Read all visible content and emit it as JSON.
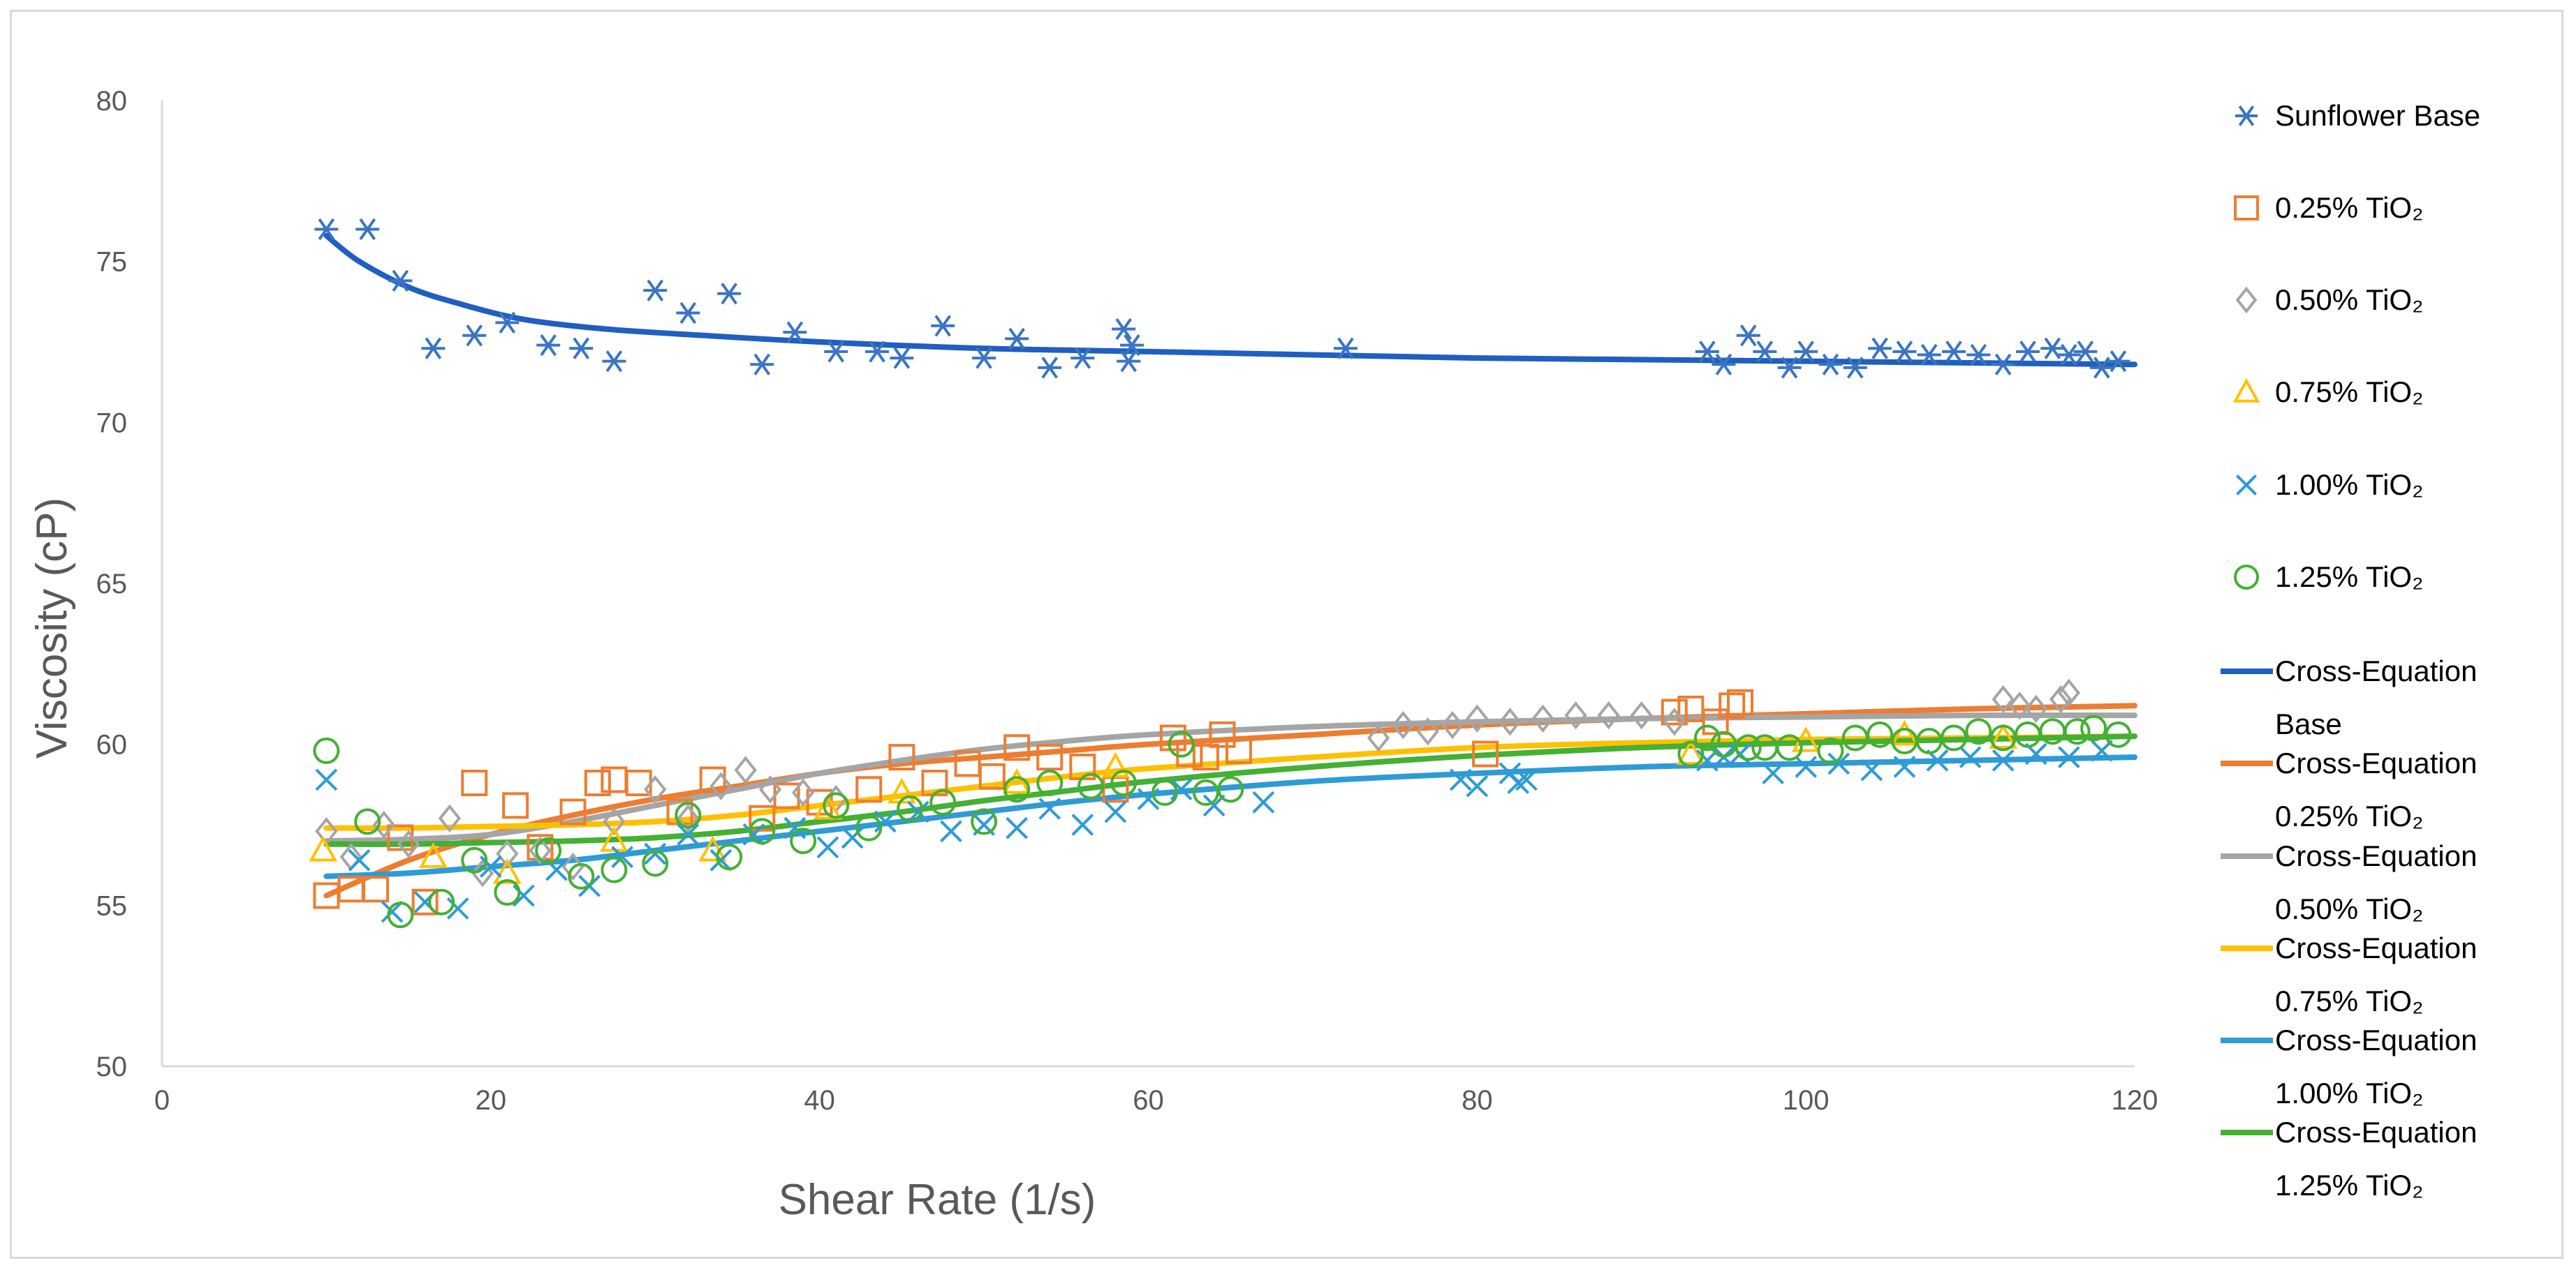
{
  "chart_data": {
    "type": "scatter",
    "title": "",
    "xlabel": "Shear Rate (1/s)",
    "ylabel": "Viscosity (cP)",
    "xlim": [
      0,
      120
    ],
    "ylim": [
      50,
      80
    ],
    "xticks": [
      "0",
      "20",
      "40",
      "60",
      "80",
      "100",
      "120"
    ],
    "yticks": [
      "50",
      "55",
      "60",
      "65",
      "70",
      "75",
      "80"
    ],
    "grid": false,
    "legend_position": "right",
    "series": [
      {
        "name": "Sunflower Base",
        "marker": "asterisk",
        "color": "#3a75c4",
        "x": [
          10,
          12.5,
          14.5,
          16.5,
          19,
          21,
          23.5,
          25.5,
          27.5,
          30,
          32,
          34.5,
          36.5,
          38.5,
          41,
          43.5,
          45,
          47.5,
          50,
          52,
          54,
          56,
          58.5,
          58.8,
          59,
          72,
          94,
          95,
          96.5,
          97.5,
          99,
          100,
          101.5,
          103,
          104.5,
          106,
          107.5,
          109,
          110.5,
          112,
          113.5,
          115,
          116,
          117,
          118,
          119
        ],
        "y": [
          76.0,
          76.0,
          74.4,
          72.3,
          72.7,
          73.1,
          72.4,
          72.3,
          71.9,
          74.1,
          73.4,
          74.0,
          71.8,
          72.8,
          72.2,
          72.2,
          72.0,
          73.0,
          72.0,
          72.6,
          71.7,
          72.0,
          72.9,
          71.9,
          72.4,
          72.3,
          72.2,
          71.8,
          72.7,
          72.2,
          71.7,
          72.2,
          71.8,
          71.7,
          72.3,
          72.2,
          72.1,
          72.2,
          72.1,
          71.8,
          72.2,
          72.3,
          72.1,
          72.2,
          71.7,
          71.9
        ]
      },
      {
        "name": "0.25% TiO₂",
        "marker": "square",
        "color": "#ed7d31",
        "x": [
          10,
          11.5,
          13,
          14.5,
          16,
          19,
          21.5,
          23,
          25,
          26.5,
          27.5,
          29,
          31.5,
          33.5,
          36.5,
          38,
          40,
          43,
          45,
          47,
          49,
          50.5,
          52,
          54,
          56,
          58,
          61.5,
          62.5,
          63.5,
          64.5,
          65.5,
          80.5,
          92,
          93,
          94.5,
          95.5,
          96
        ],
        "y": [
          55.3,
          55.5,
          55.5,
          57.1,
          55.1,
          58.8,
          58.1,
          56.8,
          57.9,
          58.8,
          58.9,
          58.8,
          57.9,
          58.9,
          57.7,
          58.4,
          58.2,
          58.6,
          59.6,
          58.8,
          59.4,
          59.0,
          59.9,
          59.6,
          59.3,
          58.6,
          60.2,
          59.7,
          59.6,
          60.3,
          59.8,
          59.7,
          61.0,
          61.1,
          60.7,
          61.2,
          61.3
        ]
      },
      {
        "name": "0.50% TiO₂",
        "marker": "diamond",
        "color": "#a5a5a5",
        "x": [
          10,
          11.5,
          13.5,
          15,
          17.5,
          19.5,
          21,
          23,
          25,
          27.5,
          30,
          32,
          34,
          35.5,
          37,
          39,
          41,
          74,
          75.5,
          77,
          78.5,
          80,
          82,
          84,
          86,
          88,
          90,
          92,
          112,
          113,
          114,
          115.5,
          116
        ],
        "y": [
          57.3,
          56.5,
          57.5,
          56.9,
          57.7,
          56.0,
          56.6,
          56.7,
          56.2,
          57.6,
          58.6,
          57.7,
          58.7,
          59.2,
          58.6,
          58.5,
          58.3,
          60.2,
          60.6,
          60.4,
          60.6,
          60.8,
          60.7,
          60.8,
          60.9,
          60.9,
          60.9,
          60.7,
          61.4,
          61.2,
          61.1,
          61.4,
          61.6
        ]
      },
      {
        "name": "0.75% TiO₂",
        "marker": "triangle",
        "color": "#ffc000",
        "x": [
          9.8,
          16.5,
          21,
          27.5,
          33.5,
          40.5,
          45,
          52,
          58,
          93,
          100,
          106,
          112
        ],
        "y": [
          56.7,
          56.5,
          56.0,
          57.0,
          56.7,
          58.0,
          58.5,
          58.8,
          59.3,
          59.7,
          60.1,
          60.3,
          60.2
        ]
      },
      {
        "name": "1.00% TiO₂",
        "marker": "x",
        "color": "#2e9bd6",
        "x": [
          10,
          12,
          14,
          16,
          18,
          20,
          22,
          24,
          26,
          28,
          30,
          32,
          34,
          36,
          38.5,
          40.5,
          42,
          44,
          46,
          48,
          50,
          52,
          54,
          56,
          58,
          60,
          62,
          64,
          67,
          79,
          80,
          82,
          82.5,
          83,
          94,
          95,
          96,
          98,
          100,
          102,
          104,
          106,
          108,
          110,
          112,
          114,
          116,
          118
        ],
        "y": [
          58.9,
          56.4,
          54.8,
          55.1,
          54.9,
          56.2,
          55.3,
          56.1,
          55.6,
          56.5,
          56.6,
          57.2,
          56.4,
          57.2,
          57.4,
          56.8,
          57.1,
          57.6,
          57.9,
          57.3,
          57.5,
          57.4,
          58.0,
          57.5,
          57.9,
          58.3,
          58.6,
          58.1,
          58.2,
          58.9,
          58.7,
          59.1,
          58.8,
          58.9,
          59.5,
          59.6,
          59.7,
          59.1,
          59.3,
          59.4,
          59.2,
          59.3,
          59.5,
          59.6,
          59.5,
          59.7,
          59.6,
          59.8
        ]
      },
      {
        "name": "1.25% TiO₂",
        "marker": "circle",
        "color": "#44b034",
        "x": [
          10,
          12.5,
          14.5,
          17,
          19,
          21,
          23.5,
          25.5,
          27.5,
          30,
          32,
          34.5,
          36.5,
          39,
          41,
          43,
          45.5,
          47.5,
          50,
          52,
          54,
          56.5,
          58.5,
          61,
          62,
          63.5,
          65,
          93,
          94,
          95,
          96.5,
          97.5,
          99,
          101.5,
          103,
          104.5,
          106,
          107.5,
          109,
          110.5,
          112,
          113.5,
          115,
          116.5,
          117.5,
          119
        ],
        "y": [
          59.8,
          57.6,
          54.7,
          55.1,
          56.4,
          55.4,
          56.7,
          55.9,
          56.1,
          56.3,
          57.8,
          56.5,
          57.3,
          57.0,
          58.1,
          57.4,
          58.0,
          58.2,
          57.6,
          58.6,
          58.8,
          58.7,
          58.8,
          58.5,
          60.0,
          58.5,
          58.6,
          59.7,
          60.2,
          60.0,
          59.9,
          59.9,
          59.9,
          59.8,
          60.2,
          60.3,
          60.1,
          60.1,
          60.2,
          60.4,
          60.2,
          60.3,
          60.4,
          60.4,
          60.5,
          60.3
        ]
      },
      {
        "name": "Cross-Equation Base",
        "type": "line",
        "color": "#1f5fc0",
        "x": [
          10,
          12,
          15,
          18,
          22,
          27,
          33,
          40,
          50,
          60,
          70,
          80,
          90,
          100,
          110,
          120
        ],
        "y": [
          75.8,
          75.0,
          74.2,
          73.7,
          73.2,
          72.9,
          72.7,
          72.5,
          72.3,
          72.2,
          72.1,
          72.0,
          71.95,
          71.9,
          71.85,
          71.8
        ]
      },
      {
        "name": "Cross-Equation 0.25% TiO₂",
        "type": "line",
        "color": "#ed7d31",
        "x": [
          10,
          15,
          20,
          25,
          30,
          35,
          40,
          45,
          50,
          55,
          60,
          70,
          80,
          90,
          100,
          110,
          120
        ],
        "y": [
          55.3,
          56.4,
          57.2,
          57.8,
          58.3,
          58.7,
          59.1,
          59.4,
          59.6,
          59.8,
          60.0,
          60.3,
          60.6,
          60.8,
          60.95,
          61.1,
          61.2
        ]
      },
      {
        "name": "Cross-Equation 0.50% TiO₂",
        "type": "line",
        "color": "#a5a5a5",
        "x": [
          10,
          15,
          20,
          25,
          30,
          35,
          40,
          45,
          50,
          55,
          60,
          70,
          80,
          90,
          100,
          110,
          120
        ],
        "y": [
          57.0,
          57.05,
          57.2,
          57.6,
          58.1,
          58.6,
          59.1,
          59.5,
          59.85,
          60.1,
          60.3,
          60.55,
          60.7,
          60.8,
          60.85,
          60.9,
          60.9
        ]
      },
      {
        "name": "Cross-Equation 0.75% TiO₂",
        "type": "line",
        "color": "#ffc000",
        "x": [
          10,
          15,
          20,
          25,
          30,
          35,
          40,
          45,
          50,
          55,
          60,
          70,
          80,
          90,
          100,
          110,
          120
        ],
        "y": [
          57.4,
          57.4,
          57.45,
          57.5,
          57.6,
          57.8,
          58.1,
          58.4,
          58.7,
          59.0,
          59.25,
          59.6,
          59.9,
          60.05,
          60.15,
          60.2,
          60.25
        ]
      },
      {
        "name": "Cross-Equation 1.00% TiO₂",
        "type": "line",
        "color": "#2e9bd6",
        "x": [
          10,
          15,
          20,
          25,
          30,
          35,
          40,
          45,
          50,
          55,
          60,
          70,
          80,
          90,
          100,
          110,
          120
        ],
        "y": [
          55.9,
          56.0,
          56.2,
          56.4,
          56.7,
          57.0,
          57.3,
          57.6,
          57.9,
          58.2,
          58.45,
          58.85,
          59.1,
          59.3,
          59.4,
          59.5,
          59.6
        ]
      },
      {
        "name": "Cross-Equation 1.25% TiO₂",
        "type": "line",
        "color": "#44b034",
        "x": [
          10,
          15,
          20,
          25,
          30,
          35,
          40,
          45,
          50,
          55,
          60,
          70,
          80,
          90,
          100,
          110,
          120
        ],
        "y": [
          56.9,
          56.9,
          56.95,
          57.0,
          57.1,
          57.3,
          57.6,
          57.9,
          58.25,
          58.55,
          58.85,
          59.3,
          59.65,
          59.9,
          60.05,
          60.15,
          60.25
        ]
      }
    ],
    "legend": [
      {
        "lines": [
          "Sunflower Base"
        ],
        "marker": "asterisk",
        "color": "#3a75c4"
      },
      {
        "lines": [
          "0.25% TiO₂"
        ],
        "marker": "square",
        "color": "#ed7d31"
      },
      {
        "lines": [
          "0.50% TiO₂"
        ],
        "marker": "diamond",
        "color": "#a5a5a5"
      },
      {
        "lines": [
          "0.75% TiO₂"
        ],
        "marker": "triangle",
        "color": "#ffc000"
      },
      {
        "lines": [
          "1.00% TiO₂"
        ],
        "marker": "x",
        "color": "#2e9bd6"
      },
      {
        "lines": [
          "1.25% TiO₂"
        ],
        "marker": "circle",
        "color": "#44b034"
      },
      {
        "lines": [
          "Cross-Equation",
          "Base"
        ],
        "marker": "line",
        "color": "#1f5fc0"
      },
      {
        "lines": [
          "Cross-Equation",
          "0.25% TiO₂"
        ],
        "marker": "line",
        "color": "#ed7d31"
      },
      {
        "lines": [
          "Cross-Equation",
          "0.50% TiO₂"
        ],
        "marker": "line",
        "color": "#a5a5a5"
      },
      {
        "lines": [
          "Cross-Equation",
          "0.75% TiO₂"
        ],
        "marker": "line",
        "color": "#ffc000"
      },
      {
        "lines": [
          "Cross-Equation",
          "1.00% TiO₂"
        ],
        "marker": "line",
        "color": "#2e9bd6"
      },
      {
        "lines": [
          "Cross-Equation",
          "1.25% TiO₂"
        ],
        "marker": "line",
        "color": "#44b034"
      }
    ]
  }
}
